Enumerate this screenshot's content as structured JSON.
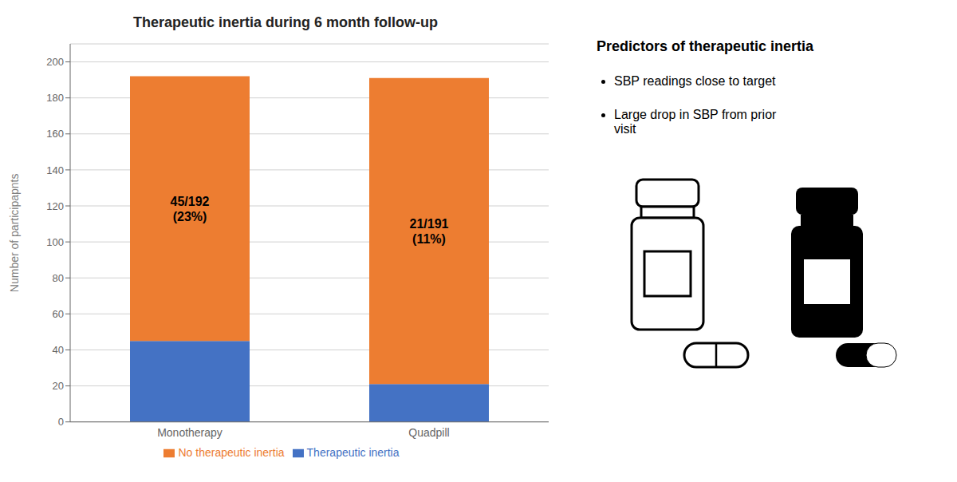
{
  "chart_data": {
    "type": "bar",
    "title": "Therapeutic inertia during 6 month follow-up",
    "categories": [
      "Monotherapy",
      "Quadpill"
    ],
    "series": [
      {
        "name": "Therapeutic inertia",
        "color": "#4472C4",
        "values": [
          45,
          21
        ]
      },
      {
        "name": "No therapeutic inertia",
        "color": "#ED7D31",
        "values": [
          147,
          170
        ]
      }
    ],
    "stacked": true,
    "ylabel": "Number of participapnts",
    "ylim": [
      0,
      210
    ],
    "yticks": [
      0,
      20,
      40,
      60,
      80,
      100,
      120,
      140,
      160,
      180,
      200
    ],
    "grid": true,
    "legend": "bottom",
    "annotations": [
      "45/192\n(23%)",
      "21/191\n(11%)"
    ],
    "side_text": {
      "title": "Predictors of therapeutic inertia",
      "bullets": [
        "SBP readings close to target",
        "Large drop in SBP from prior\nvisit"
      ]
    }
  }
}
